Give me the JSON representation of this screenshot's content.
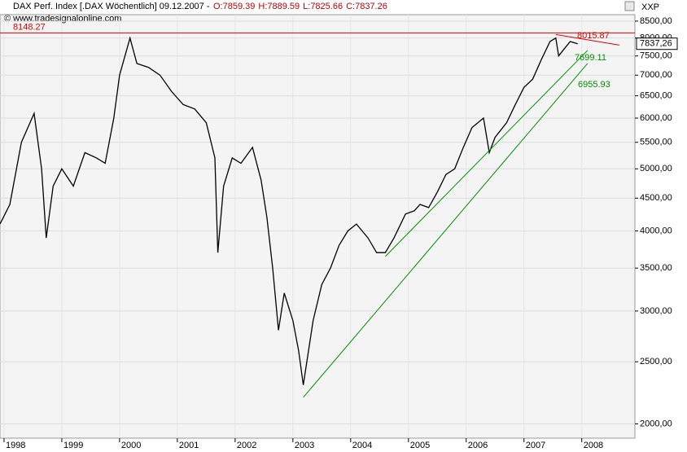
{
  "chart_data": {
    "type": "line",
    "title": "DAX Perf. Index [.DAX  Wöchentlich] 09.12.2007 -",
    "ohlc": [
      "O:7859.39",
      "H:7889.59",
      "L:7825.66",
      "C:7837.26"
    ],
    "copyright": "© www.tradesignalonline.com",
    "corner_label": "XXP",
    "last_price_label": "7837,26",
    "log_scale": true,
    "grid": true,
    "xlim": [
      1997.93,
      2008.92
    ],
    "ylim": [
      1900,
      8700
    ],
    "xticks": [
      1998,
      1999,
      2000,
      2001,
      2002,
      2003,
      2004,
      2005,
      2006,
      2007,
      2008
    ],
    "yticks": [
      {
        "value": 2000,
        "label": "2000,00"
      },
      {
        "value": 2500,
        "label": "2500,00"
      },
      {
        "value": 3000,
        "label": "3000,00"
      },
      {
        "value": 3500,
        "label": "3500,00"
      },
      {
        "value": 4000,
        "label": "4000,00"
      },
      {
        "value": 4500,
        "label": "4500,00"
      },
      {
        "value": 5000,
        "label": "5000,00"
      },
      {
        "value": 5500,
        "label": "5500,00"
      },
      {
        "value": 6000,
        "label": "6000,00"
      },
      {
        "value": 6500,
        "label": "6500,00"
      },
      {
        "value": 7000,
        "label": "7000,00"
      },
      {
        "value": 7500,
        "label": "7500,00"
      },
      {
        "value": 8000,
        "label": "8000,00"
      },
      {
        "value": 8500,
        "label": "8500,00"
      }
    ],
    "x": [
      1997.93,
      1998.1,
      1998.3,
      1998.52,
      1998.65,
      1998.73,
      1998.85,
      1999.0,
      1999.2,
      1999.4,
      1999.6,
      1999.75,
      1999.9,
      2000.0,
      2000.18,
      2000.3,
      2000.5,
      2000.7,
      2000.9,
      2001.1,
      2001.3,
      2001.5,
      2001.65,
      2001.7,
      2001.8,
      2001.95,
      2002.1,
      2002.3,
      2002.45,
      2002.55,
      2002.65,
      2002.75,
      2002.85,
      2003.0,
      2003.1,
      2003.18,
      2003.35,
      2003.5,
      2003.65,
      2003.8,
      2003.95,
      2004.1,
      2004.3,
      2004.45,
      2004.6,
      2004.75,
      2004.95,
      2005.1,
      2005.2,
      2005.35,
      2005.5,
      2005.65,
      2005.8,
      2005.95,
      2006.1,
      2006.3,
      2006.4,
      2006.5,
      2006.7,
      2006.85,
      2007.0,
      2007.15,
      2007.3,
      2007.45,
      2007.55,
      2007.6,
      2007.7,
      2007.8,
      2007.93
    ],
    "series": [
      {
        "name": "DAX",
        "color": "#000000",
        "values": [
          4100,
          4400,
          5500,
          6100,
          5000,
          3900,
          4700,
          5000,
          4700,
          5300,
          5200,
          5100,
          6000,
          7000,
          8000,
          7300,
          7200,
          7000,
          6600,
          6300,
          6200,
          5900,
          5200,
          3700,
          4700,
          5200,
          5100,
          5400,
          4800,
          4200,
          3500,
          2800,
          3200,
          2900,
          2600,
          2300,
          2900,
          3300,
          3500,
          3800,
          4000,
          4100,
          3900,
          3700,
          3700,
          3900,
          4250,
          4300,
          4400,
          4350,
          4600,
          4900,
          5000,
          5400,
          5800,
          6000,
          5300,
          5600,
          5900,
          6300,
          6700,
          6900,
          7400,
          7900,
          8000,
          7500,
          7700,
          7900,
          7837
        ]
      }
    ],
    "hlines": [
      {
        "value": 8148.27,
        "label": "8148.27",
        "color": "#e00000"
      }
    ],
    "trendlines": [
      {
        "x": [
          2007.55,
          2008.65
        ],
        "y": [
          8100,
          7800
        ],
        "label": "8015.87",
        "color": "#e00000"
      },
      {
        "x": [
          2004.6,
          2008.1
        ],
        "y": [
          3650,
          7650
        ],
        "label": "7699.11",
        "color": "#009000"
      },
      {
        "x": [
          2003.18,
          2008.1
        ],
        "y": [
          2200,
          7300
        ],
        "label": "6955.93",
        "color": "#009000"
      }
    ]
  }
}
